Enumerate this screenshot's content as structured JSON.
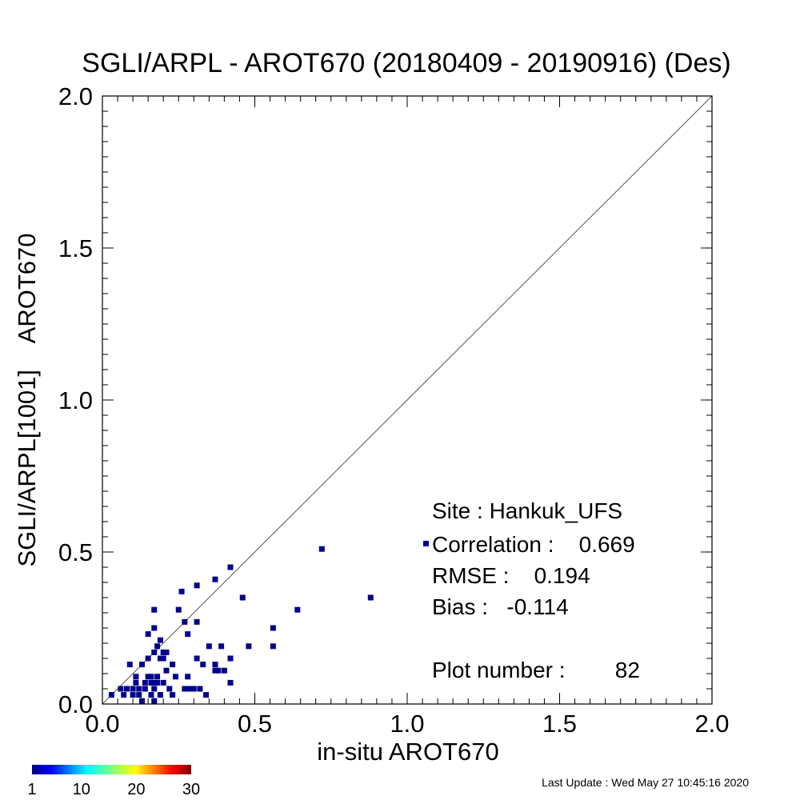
{
  "chart_data": {
    "type": "scatter",
    "title": "SGLI/ARPL - AROT670 (20180409 - 20190916) (Des)",
    "xlabel": "in-situ AROT670",
    "ylabel": "SGLI/ARPL[1001]    AROT670",
    "xlim": [
      0.0,
      2.0
    ],
    "ylim": [
      0.0,
      2.0
    ],
    "x_ticks": [
      "0.0",
      "0.5",
      "1.0",
      "1.5",
      "2.0"
    ],
    "y_ticks": [
      "0.0",
      "0.5",
      "1.0",
      "1.5",
      "2.0"
    ],
    "reference_line": "1:1",
    "grid": false,
    "marker_color": "#00008b",
    "points": [
      [
        0.03,
        0.03
      ],
      [
        0.06,
        0.05
      ],
      [
        0.07,
        0.03
      ],
      [
        0.08,
        0.05
      ],
      [
        0.09,
        0.13
      ],
      [
        0.1,
        0.03
      ],
      [
        0.1,
        0.05
      ],
      [
        0.11,
        0.07
      ],
      [
        0.11,
        0.09
      ],
      [
        0.12,
        0.05
      ],
      [
        0.12,
        0.03
      ],
      [
        0.13,
        0.01
      ],
      [
        0.13,
        0.13
      ],
      [
        0.14,
        0.05
      ],
      [
        0.14,
        0.07
      ],
      [
        0.15,
        0.09
      ],
      [
        0.15,
        0.15
      ],
      [
        0.15,
        0.23
      ],
      [
        0.16,
        0.07
      ],
      [
        0.16,
        0.09
      ],
      [
        0.16,
        0.03
      ],
      [
        0.17,
        0.05
      ],
      [
        0.17,
        0.07
      ],
      [
        0.17,
        0.17
      ],
      [
        0.17,
        0.31
      ],
      [
        0.17,
        0.25
      ],
      [
        0.17,
        0.01
      ],
      [
        0.18,
        0.09
      ],
      [
        0.18,
        0.07
      ],
      [
        0.18,
        0.19
      ],
      [
        0.19,
        0.15
      ],
      [
        0.19,
        0.21
      ],
      [
        0.19,
        0.03
      ],
      [
        0.2,
        0.07
      ],
      [
        0.2,
        0.17
      ],
      [
        0.2,
        0.15
      ],
      [
        0.21,
        0.11
      ],
      [
        0.21,
        0.17
      ],
      [
        0.22,
        0.05
      ],
      [
        0.23,
        0.13
      ],
      [
        0.23,
        0.03
      ],
      [
        0.24,
        0.09
      ],
      [
        0.25,
        0.31
      ],
      [
        0.26,
        0.37
      ],
      [
        0.27,
        0.27
      ],
      [
        0.27,
        0.05
      ],
      [
        0.28,
        0.09
      ],
      [
        0.28,
        0.23
      ],
      [
        0.28,
        0.05
      ],
      [
        0.29,
        0.05
      ],
      [
        0.3,
        0.05
      ],
      [
        0.31,
        0.39
      ],
      [
        0.31,
        0.27
      ],
      [
        0.31,
        0.15
      ],
      [
        0.32,
        0.05
      ],
      [
        0.33,
        0.13
      ],
      [
        0.34,
        0.03
      ],
      [
        0.35,
        0.19
      ],
      [
        0.37,
        0.41
      ],
      [
        0.37,
        0.13
      ],
      [
        0.37,
        0.11
      ],
      [
        0.38,
        0.11
      ],
      [
        0.39,
        0.19
      ],
      [
        0.4,
        0.11
      ],
      [
        0.42,
        0.07
      ],
      [
        0.42,
        0.15
      ],
      [
        0.42,
        0.45
      ],
      [
        0.46,
        0.35
      ],
      [
        0.48,
        0.19
      ],
      [
        0.56,
        0.25
      ],
      [
        0.56,
        0.19
      ],
      [
        0.64,
        0.31
      ],
      [
        0.72,
        0.51
      ],
      [
        0.88,
        0.35
      ]
    ],
    "colorbar": {
      "ticks": [
        "1",
        "10",
        "20",
        "30"
      ]
    }
  },
  "stats": {
    "site": "Site : Hankuk_UFS",
    "correlation": "Correlation :    0.669",
    "rmse": "RMSE :    0.194",
    "bias": "Bias :   -0.114",
    "plot_number": "Plot number :        82"
  },
  "footer": {
    "last_update": "Last Update : Wed May 27 10:45:16 2020"
  }
}
